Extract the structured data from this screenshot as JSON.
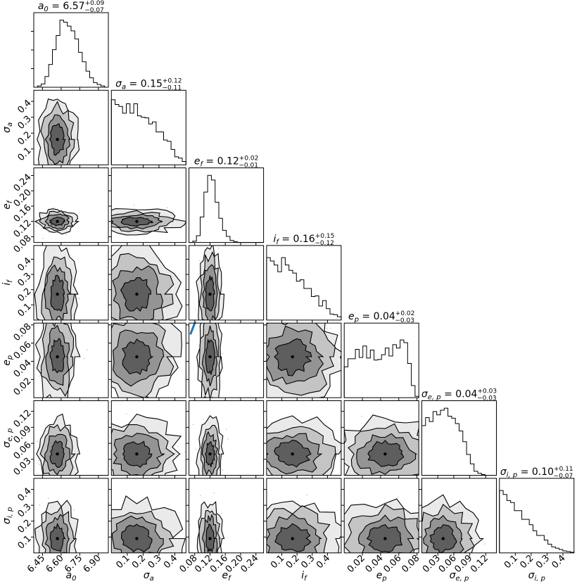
{
  "chart_data": {
    "type": "corner",
    "parameters": [
      {
        "name": "a_0",
        "label_main": "a",
        "label_sub": "0",
        "title": "a_0 = 6.57^{+0.09}_{-0.07}",
        "title_lhs_main": "a",
        "title_lhs_sub": "0",
        "title_value": "6.57",
        "title_err_plus": "+0.09",
        "title_err_minus": "−0.07",
        "range": [
          6.38,
          6.98
        ],
        "ticks": [
          6.45,
          6.6,
          6.75,
          6.9
        ],
        "tick_labels": [
          "6.45",
          "6.60",
          "6.75",
          "6.90"
        ],
        "hist": [
          0.0,
          0.02,
          0.05,
          0.16,
          0.34,
          0.56,
          0.77,
          1.0,
          0.97,
          0.91,
          0.84,
          0.72,
          0.52,
          0.38,
          0.24,
          0.14,
          0.07,
          0.04,
          0.02,
          0.0
        ],
        "center": 6.57,
        "spread": 0.06
      },
      {
        "name": "sigma_a",
        "label_main": "σ",
        "label_sub": "a",
        "title": "σ_a = 0.15^{+0.12}_{-0.11}",
        "title_lhs_main": "σ",
        "title_lhs_sub": "a",
        "title_value": "0.15",
        "title_err_plus": "+0.12",
        "title_err_minus": "−0.11",
        "range": [
          0.0,
          0.47
        ],
        "ticks": [
          0.1,
          0.2,
          0.3,
          0.4
        ],
        "tick_labels": [
          "0.1",
          "0.2",
          "0.3",
          "0.4"
        ],
        "hist": [
          0.97,
          0.9,
          0.87,
          0.77,
          0.91,
          0.77,
          0.91,
          0.73,
          0.71,
          0.7,
          0.61,
          0.64,
          0.49,
          0.49,
          0.37,
          0.35,
          0.23,
          0.12,
          0.1,
          0.05
        ],
        "center": 0.16,
        "spread": 0.1
      },
      {
        "name": "e_f",
        "label_main": "e",
        "label_sub": "f",
        "title": "e_f = 0.12^{+0.02}_{-0.01}",
        "title_lhs_main": "e",
        "title_lhs_sub": "f",
        "title_value": "0.12",
        "title_err_plus": "+0.02",
        "title_err_minus": "−0.01",
        "range": [
          0.065,
          0.26
        ],
        "ticks": [
          0.08,
          0.12,
          0.16,
          0.2,
          0.24
        ],
        "tick_labels": [
          "0.08",
          "0.12",
          "0.16",
          "0.20",
          "0.24"
        ],
        "hist": [
          0.0,
          0.02,
          0.1,
          0.38,
          0.75,
          1.0,
          0.93,
          0.6,
          0.36,
          0.18,
          0.09,
          0.03,
          0.01,
          0.0,
          0.0,
          0.0,
          0.0,
          0.0,
          0.0,
          0.0
        ],
        "center": 0.12,
        "spread": 0.012
      },
      {
        "name": "i_f",
        "label_main": "i",
        "label_sub": "f",
        "title": "i_f = 0.16^{+0.15}_{-0.12}",
        "title_lhs_main": "i",
        "title_lhs_sub": "f",
        "title_value": "0.16",
        "title_err_plus": "+0.15",
        "title_err_minus": "−0.12",
        "range": [
          0.0,
          0.49
        ],
        "ticks": [
          0.1,
          0.2,
          0.3,
          0.4
        ],
        "tick_labels": [
          "0.1",
          "0.2",
          "0.3",
          "0.4"
        ],
        "hist": [
          0.93,
          0.88,
          0.82,
          0.72,
          0.93,
          0.82,
          0.74,
          0.7,
          0.58,
          0.6,
          0.47,
          0.47,
          0.35,
          0.36,
          0.21,
          0.29,
          0.17,
          0.09,
          0.08,
          0.05
        ],
        "center": 0.17,
        "spread": 0.12
      },
      {
        "name": "e_p",
        "label_main": "e",
        "label_sub": "p",
        "title": "e_p = 0.04^{+0.02}_{-0.03}",
        "title_lhs_main": "e",
        "title_lhs_sub": "p",
        "title_value": "0.04",
        "title_err_plus": "+0.02",
        "title_err_minus": "−0.03",
        "range": [
          0.0,
          0.082
        ],
        "ticks": [
          0.02,
          0.04,
          0.06,
          0.08
        ],
        "tick_labels": [
          "0.02",
          "0.04",
          "0.06",
          "0.08"
        ],
        "hist": [
          0.46,
          0.58,
          0.58,
          0.72,
          0.6,
          0.77,
          0.59,
          0.71,
          0.56,
          0.57,
          0.64,
          0.74,
          0.62,
          0.79,
          0.74,
          0.86,
          0.82,
          0.51,
          0.18,
          0.02
        ],
        "center": 0.045,
        "spread": 0.02
      },
      {
        "name": "sigma_e_p",
        "label_main": "σ",
        "label_sub": "e, p",
        "title": "σ_{e,p} = 0.04^{+0.03}_{-0.03}",
        "title_lhs_main": "σ",
        "title_lhs_sub": "e, p",
        "title_value": "0.04",
        "title_err_plus": "+0.03",
        "title_err_minus": "−0.03",
        "range": [
          0.0,
          0.14
        ],
        "ticks": [
          0.03,
          0.06,
          0.09,
          0.12
        ],
        "tick_labels": [
          "0.03",
          "0.06",
          "0.09",
          "0.12"
        ],
        "hist": [
          0.74,
          0.86,
          0.8,
          0.95,
          0.9,
          0.97,
          1.0,
          0.88,
          0.85,
          0.77,
          0.66,
          0.5,
          0.31,
          0.17,
          0.06,
          0.03,
          0.01,
          0.0,
          0.0,
          0.0
        ],
        "center": 0.04,
        "spread": 0.025
      },
      {
        "name": "sigma_i_p",
        "label_main": "σ",
        "label_sub": "i, p",
        "title": "σ_{i,p} = 0.10^{+0.11}_{-0.07}",
        "title_lhs_main": "σ",
        "title_lhs_sub": "i, p",
        "title_value": "0.10",
        "title_err_plus": "+0.11",
        "title_err_minus": "−0.07",
        "range": [
          0.0,
          0.47
        ],
        "ticks": [
          0.1,
          0.2,
          0.3,
          0.4
        ],
        "tick_labels": [
          "0.1",
          "0.2",
          "0.3",
          "0.4"
        ],
        "hist": [
          0.93,
          0.87,
          0.78,
          0.75,
          0.63,
          0.63,
          0.5,
          0.5,
          0.42,
          0.33,
          0.26,
          0.26,
          0.19,
          0.13,
          0.09,
          0.07,
          0.05,
          0.03,
          0.02,
          0.01
        ],
        "center": 0.09,
        "spread": 0.09
      }
    ],
    "y_ticks_by_row": [
      {
        "ticks": [],
        "tick_labels": []
      },
      {
        "ticks": [
          0.1,
          0.2,
          0.3,
          0.4
        ],
        "tick_labels": [
          "0.1",
          "0.2",
          "0.3",
          "0.4"
        ]
      },
      {
        "ticks": [
          0.08,
          0.12,
          0.16,
          0.2,
          0.24
        ],
        "tick_labels": [
          "0.08",
          "0.12",
          "0.16",
          "0.20",
          "0.24"
        ]
      },
      {
        "ticks": [
          0.1,
          0.2,
          0.3,
          0.4
        ],
        "tick_labels": [
          "0.1",
          "0.2",
          "0.3",
          "0.4"
        ]
      },
      {
        "ticks": [
          0.02,
          0.04,
          0.06,
          0.08
        ],
        "tick_labels": [
          "0.02",
          "0.04",
          "0.06",
          "0.08"
        ]
      },
      {
        "ticks": [
          0.03,
          0.06,
          0.09,
          0.12
        ],
        "tick_labels": [
          "0.03",
          "0.06",
          "0.09",
          "0.12"
        ]
      },
      {
        "ticks": [
          0.1,
          0.2,
          0.3,
          0.4
        ],
        "tick_labels": [
          "0.1",
          "0.2",
          "0.3",
          "0.4"
        ]
      }
    ],
    "contour_levels": 4,
    "colors": {
      "line": "#000000",
      "fill_dark": "#5a5a5a",
      "fill_light": "#d4d4d4",
      "points": "#8a8a8a",
      "truth": "#1f77b4"
    },
    "truth_marker": {
      "row": 4,
      "col": 2
    }
  }
}
